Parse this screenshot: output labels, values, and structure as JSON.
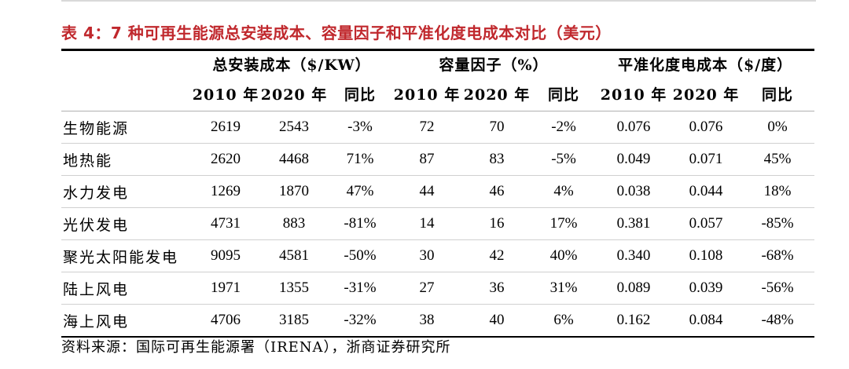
{
  "title": "表 4：7 种可再生能源总安装成本、容量因子和平准化度电成本对比（美元）",
  "groups": {
    "cost": "总安装成本（$/KW）",
    "capacity": "容量因子（%）",
    "lcoe": "平准化度电成本（$/度）"
  },
  "subheaders": {
    "y2010": "2010 年",
    "y2020": "2020 年",
    "yoy": "同比"
  },
  "rows": [
    {
      "name": "生物能源",
      "cost2010": "2619",
      "cost2020": "2543",
      "cost_yoy": "-3%",
      "cap2010": "72",
      "cap2020": "70",
      "cap_yoy": "-2%",
      "lcoe2010": "0.076",
      "lcoe2020": "0.076",
      "lcoe_yoy": "0%"
    },
    {
      "name": "地热能",
      "cost2010": "2620",
      "cost2020": "4468",
      "cost_yoy": "71%",
      "cap2010": "87",
      "cap2020": "83",
      "cap_yoy": "-5%",
      "lcoe2010": "0.049",
      "lcoe2020": "0.071",
      "lcoe_yoy": "45%"
    },
    {
      "name": "水力发电",
      "cost2010": "1269",
      "cost2020": "1870",
      "cost_yoy": "47%",
      "cap2010": "44",
      "cap2020": "46",
      "cap_yoy": "4%",
      "lcoe2010": "0.038",
      "lcoe2020": "0.044",
      "lcoe_yoy": "18%"
    },
    {
      "name": "光伏发电",
      "cost2010": "4731",
      "cost2020": "883",
      "cost_yoy": "-81%",
      "cap2010": "14",
      "cap2020": "16",
      "cap_yoy": "17%",
      "lcoe2010": "0.381",
      "lcoe2020": "0.057",
      "lcoe_yoy": "-85%"
    },
    {
      "name": "聚光太阳能发电",
      "cost2010": "9095",
      "cost2020": "4581",
      "cost_yoy": "-50%",
      "cap2010": "30",
      "cap2020": "42",
      "cap_yoy": "40%",
      "lcoe2010": "0.340",
      "lcoe2020": "0.108",
      "lcoe_yoy": "-68%"
    },
    {
      "name": "陆上风电",
      "cost2010": "1971",
      "cost2020": "1355",
      "cost_yoy": "-31%",
      "cap2010": "27",
      "cap2020": "36",
      "cap_yoy": "31%",
      "lcoe2010": "0.089",
      "lcoe2020": "0.039",
      "lcoe_yoy": "-56%"
    },
    {
      "name": "海上风电",
      "cost2010": "4706",
      "cost2020": "3185",
      "cost_yoy": "-32%",
      "cap2010": "38",
      "cap2020": "40",
      "cap_yoy": "6%",
      "lcoe2010": "0.162",
      "lcoe2020": "0.084",
      "lcoe_yoy": "-48%"
    }
  ],
  "source": "资料来源：国际可再生能源署（IRENA），浙商证券研究所",
  "colors": {
    "title": "#c0282d",
    "rule": "#000000"
  }
}
